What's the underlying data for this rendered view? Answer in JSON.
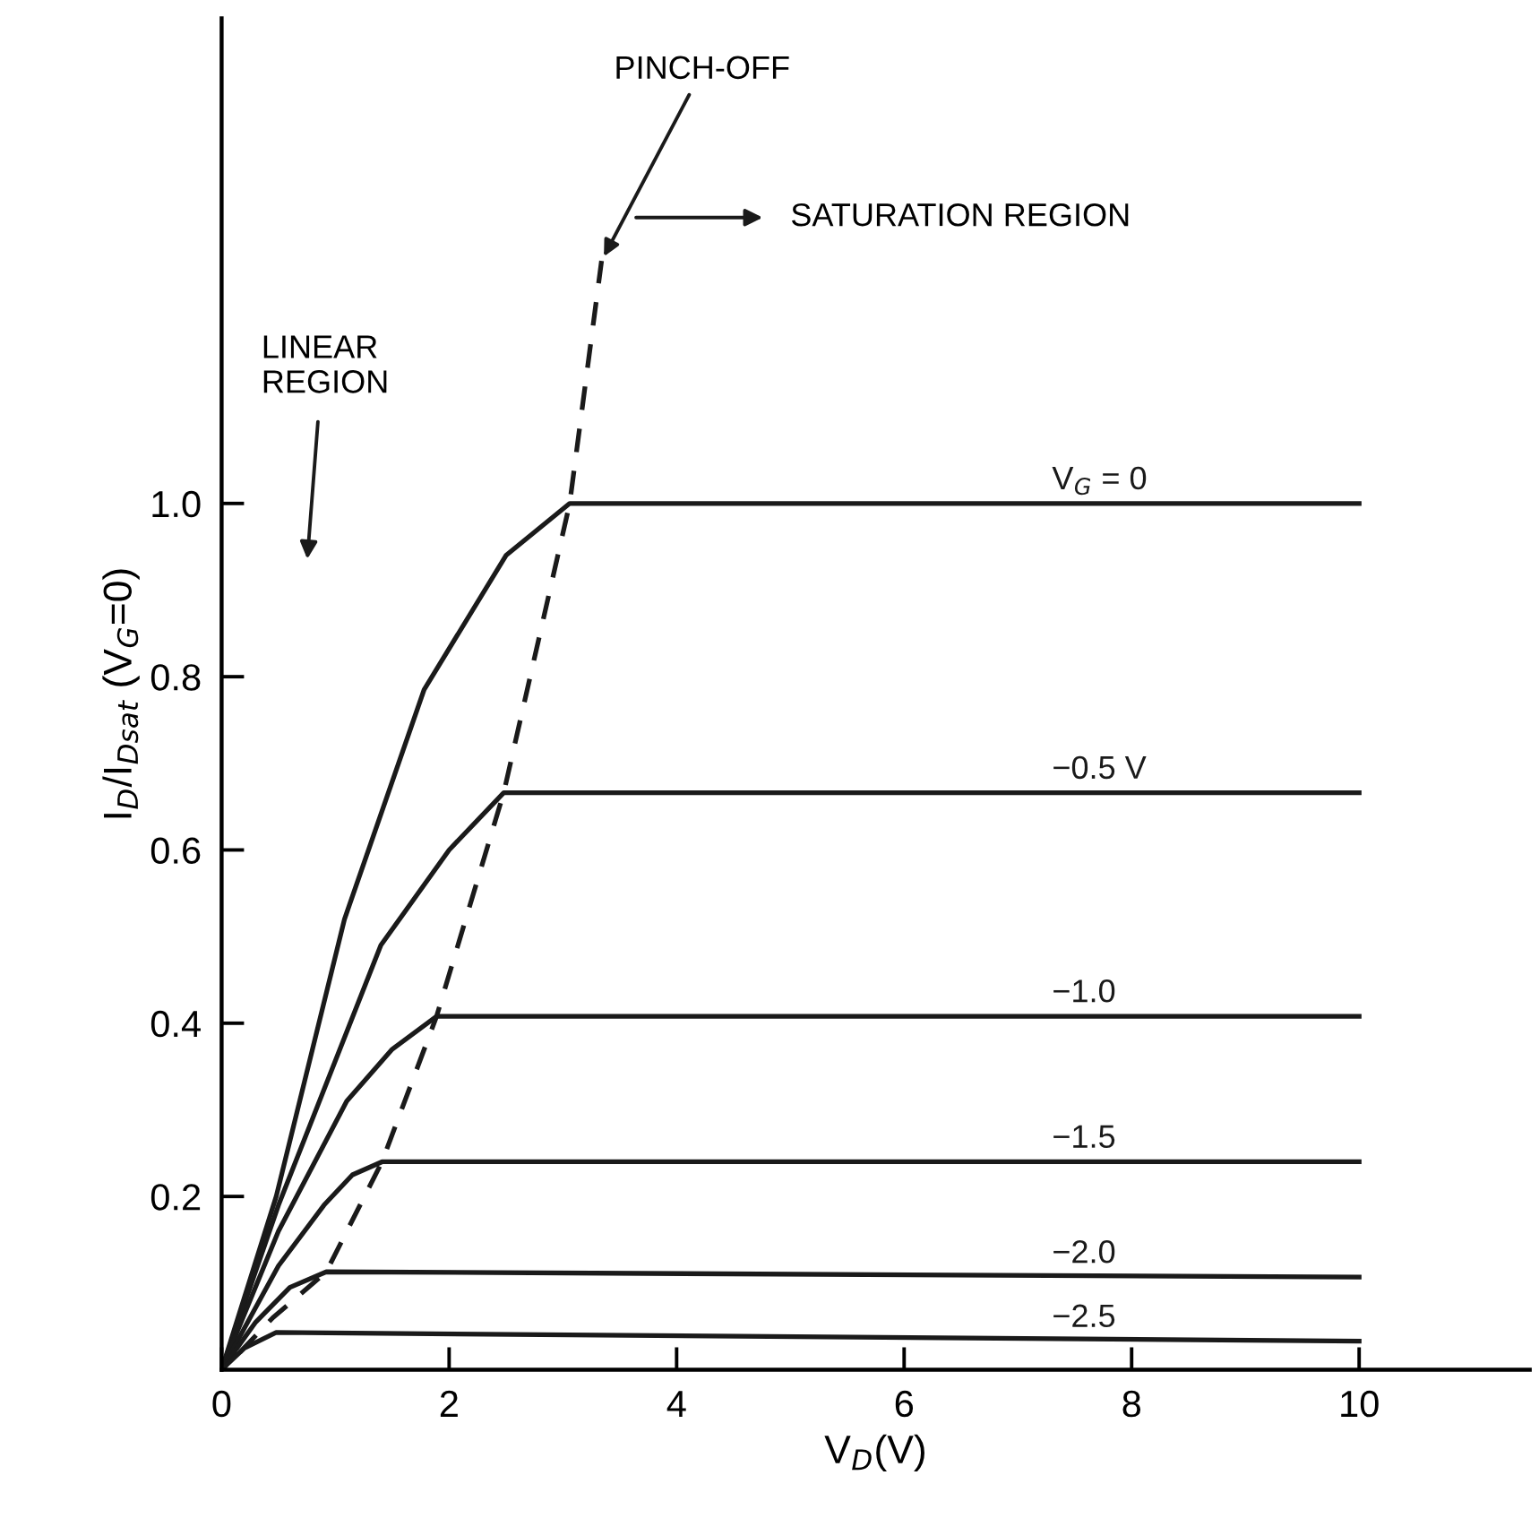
{
  "chart_data": {
    "type": "line",
    "xlabel": "V$_{D}$(V)",
    "ylabel": "I$_{D}$/I$_{Dsat}$ (V$_{G}$=0)",
    "xlim": [
      0,
      11.5
    ],
    "ylim": [
      0,
      1.56
    ],
    "xticks": [
      0,
      2,
      4,
      6,
      8,
      10
    ],
    "yticks": [
      0.2,
      0.4,
      0.6,
      0.8,
      {
        "value": 1.0,
        "label": "1.0"
      }
    ],
    "grid": false,
    "marker": "none",
    "line_style": "solid",
    "series": [
      {
        "name": "V$_{G}$ = 0",
        "color": "#1a1a1a",
        "x": [
          0,
          0.48,
          1.08,
          1.78,
          2.5,
          3.06,
          10
        ],
        "values": [
          0,
          0.2,
          0.52,
          0.785,
          0.94,
          1.0,
          1.0
        ]
      },
      {
        "name": "−0.5 V",
        "color": "#1a1a1a",
        "x": [
          0,
          0.5,
          1.4,
          2.0,
          2.48,
          10
        ],
        "values": [
          0,
          0.19,
          0.49,
          0.6,
          0.666,
          0.666
        ]
      },
      {
        "name": "−1.0",
        "color": "#1a1a1a",
        "x": [
          0,
          0.5,
          1.1,
          1.5,
          1.89,
          10
        ],
        "values": [
          0,
          0.16,
          0.31,
          0.37,
          0.408,
          0.408
        ]
      },
      {
        "name": "−1.5",
        "color": "#1a1a1a",
        "x": [
          0,
          0.5,
          0.9,
          1.15,
          1.41,
          10
        ],
        "values": [
          0,
          0.12,
          0.19,
          0.225,
          0.24,
          0.24
        ]
      },
      {
        "name": "−2.0",
        "color": "#1a1a1a",
        "x": [
          0,
          0.3,
          0.6,
          0.92,
          10
        ],
        "values": [
          0,
          0.055,
          0.095,
          0.113,
          0.107
        ]
      },
      {
        "name": "−2.5",
        "color": "#1a1a1a",
        "x": [
          0,
          0.2,
          0.48,
          10
        ],
        "values": [
          0,
          0.025,
          0.043,
          0.033
        ]
      },
      {
        "color": "#1a1a1a",
        "line_style": "dashed",
        "x": [
          0.16,
          0.45,
          0.92,
          1.41,
          1.89,
          2.48,
          3.06,
          3.34
        ],
        "values": [
          0.02,
          0.06,
          0.113,
          0.24,
          0.408,
          0.666,
          1.0,
          1.28
        ]
      }
    ],
    "annotations": [
      {
        "text": "PINCH-OFF",
        "x": 3.34,
        "y": 1.28
      },
      "SATURATION REGION",
      "LINEAR REGION"
    ]
  }
}
